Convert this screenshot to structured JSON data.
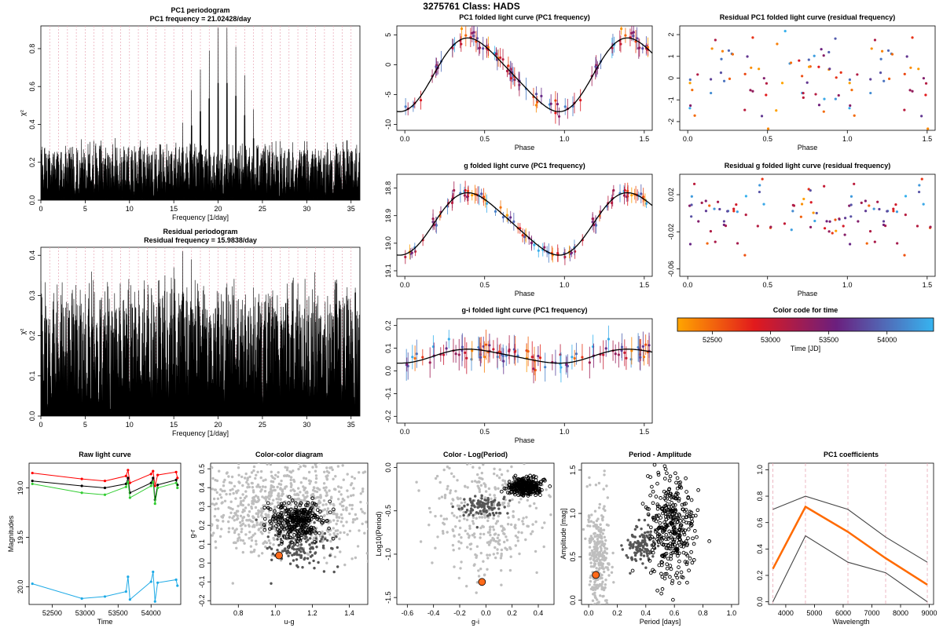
{
  "figure_title": "3275761    Class: HADS",
  "colors": {
    "early_time": "#FFA500",
    "late_time": "#36B4F0",
    "mid_time": "#6B1F7E",
    "fit_curve": "#000000",
    "reference_lines": "#E8A6B5",
    "highlight_point": "#FF6A1A",
    "background_points": "#BEBEBE"
  },
  "colorbar": {
    "title": "Color code for time",
    "xlabel": "Time [JD]",
    "ticks": [
      "52500",
      "53000",
      "53500",
      "54000"
    ],
    "range": [
      52200,
      54400
    ]
  },
  "chart_data": [
    {
      "id": "pc1-periodogram",
      "type": "line",
      "title": "PC1 periodogram",
      "subtitle": "PC1 frequency = 21.02428/day",
      "xlabel": "Frequency [1/day]",
      "ylabel": "χ²",
      "xlim": [
        0,
        36
      ],
      "ylim": [
        0,
        0.92
      ],
      "xticks": [
        "0",
        "5",
        "10",
        "15",
        "20",
        "25",
        "30",
        "35"
      ],
      "yticks": [
        "0.0",
        "0.2",
        "0.4",
        "0.6",
        "0.8"
      ],
      "reference_lines": "dashed vertical lines at 1/day intervals",
      "peaks": [
        [
          17.0,
          0.58
        ],
        [
          18.0,
          0.69
        ],
        [
          19.0,
          0.79
        ],
        [
          20.0,
          0.91
        ],
        [
          21.0,
          0.91
        ],
        [
          22.0,
          0.81
        ],
        [
          23.0,
          0.66
        ],
        [
          24.0,
          0.48
        ],
        [
          16.0,
          0.41
        ]
      ]
    },
    {
      "id": "residual-periodogram",
      "type": "line",
      "title": "Residual periodogram",
      "subtitle": "Residual frequency = 15.9838/day",
      "xlabel": "Frequency [1/day]",
      "ylabel": "χ²",
      "xlim": [
        0,
        36
      ],
      "ylim": [
        0,
        0.42
      ],
      "xticks": [
        "0",
        "5",
        "10",
        "15",
        "20",
        "25",
        "30",
        "35"
      ],
      "yticks": [
        "0.0",
        "0.1",
        "0.2",
        "0.3",
        "0.4"
      ],
      "reference_lines": "dashed vertical lines at 1/day intervals",
      "peaks": [
        [
          16.0,
          0.41
        ],
        [
          17.0,
          0.39
        ],
        [
          15.0,
          0.37
        ],
        [
          14.0,
          0.35
        ],
        [
          21.0,
          0.33
        ],
        [
          29.0,
          0.33
        ],
        [
          24.0,
          0.32
        ]
      ]
    },
    {
      "id": "pc1-folded",
      "type": "scatter",
      "title": "PC1 folded light curve (PC1 frequency)",
      "xlabel": "Phase",
      "ylabel": "",
      "xlim": [
        -0.05,
        1.55
      ],
      "ylim": [
        -11,
        6.5
      ],
      "xticks": [
        "0.0",
        "0.5",
        "1.0",
        "1.5"
      ],
      "yticks": [
        "5",
        "0",
        "-5",
        "-10"
      ],
      "y_inverted": false,
      "fit": {
        "mean": -1.7,
        "amplitude": 6.0,
        "peak_phase": 0.43,
        "sharpness": 0.25
      },
      "scatter": 0.7,
      "error_bar": 1.4
    },
    {
      "id": "g-folded",
      "type": "scatter",
      "title": "g folded light curve (PC1 frequency)",
      "xlabel": "Phase",
      "ylabel": "",
      "xlim": [
        -0.05,
        1.55
      ],
      "ylim": [
        19.12,
        18.75
      ],
      "xticks": [
        "0.0",
        "0.5",
        "1.0",
        "1.5"
      ],
      "yticks": [
        "18.8",
        "18.9",
        "19.0",
        "19.1"
      ],
      "y_inverted": true,
      "fit": {
        "mean": 18.93,
        "amplitude": -0.11,
        "peak_phase": 0.43,
        "sharpness": 0.25
      },
      "scatter": 0.012,
      "error_bar": 0.025
    },
    {
      "id": "gi-folded",
      "type": "scatter",
      "title": "g-i folded light curve (PC1 frequency)",
      "xlabel": "Phase",
      "ylabel": "",
      "xlim": [
        -0.05,
        1.55
      ],
      "ylim": [
        -0.23,
        0.23
      ],
      "xticks": [
        "0.0",
        "0.5",
        "1.0",
        "1.5"
      ],
      "yticks": [
        "0.2",
        "0.1",
        "0.0",
        "-0.1",
        "-0.2"
      ],
      "y_inverted": false,
      "fit": {
        "mean": 0.065,
        "amplitude": 0.03,
        "peak_phase": 0.43,
        "sharpness": 0.25
      },
      "scatter": 0.02,
      "error_bar": 0.05
    },
    {
      "id": "residual-pc1-folded",
      "type": "scatter",
      "title": "Residual PC1 folded light curve (residual frequency)",
      "xlabel": "Phase",
      "ylabel": "",
      "xlim": [
        -0.05,
        1.55
      ],
      "ylim": [
        -2.4,
        2.4
      ],
      "xticks": [
        "0.0",
        "0.5",
        "1.0",
        "1.5"
      ],
      "yticks": [
        "2",
        "1",
        "0",
        "-1",
        "-2"
      ],
      "y_inverted": false,
      "fit": {
        "mean": 0,
        "amplitude": 0,
        "peak_phase": 0.6,
        "sharpness": 0.4
      },
      "scatter": 1.1
    },
    {
      "id": "residual-g-folded",
      "type": "scatter",
      "title": "Residual g folded light curve (residual frequency)",
      "xlabel": "Phase",
      "ylabel": "",
      "xlim": [
        -0.05,
        1.55
      ],
      "ylim": [
        -0.068,
        0.042
      ],
      "xticks": [
        "0.0",
        "0.5",
        "1.0",
        "1.5"
      ],
      "yticks": [
        "0.02",
        "-0.02",
        "-0.06"
      ],
      "y_inverted": false,
      "fit": {
        "mean": 0,
        "amplitude": 0,
        "peak_phase": 0.6,
        "sharpness": 0.4
      },
      "scatter": 0.018
    },
    {
      "id": "raw-light-curve",
      "type": "line",
      "title": "Raw light curve",
      "xlabel": "Time",
      "ylabel": "Magnitudes",
      "xlim": [
        52150,
        54450
      ],
      "ylim": [
        20.18,
        18.75
      ],
      "xticks": [
        "52500",
        "53000",
        "53500",
        "54000"
      ],
      "yticks": [
        "19.0",
        "19.5",
        "20.0"
      ],
      "y_inverted": true,
      "times": [
        52200,
        52950,
        53300,
        53620,
        53650,
        53680,
        54000,
        54030,
        54060,
        54100,
        54380,
        54400
      ],
      "series": [
        {
          "name": "",
          "color": "#FF0000",
          "values": [
            18.85,
            18.91,
            18.93,
            18.88,
            18.82,
            18.95,
            18.86,
            18.83,
            18.98,
            18.87,
            18.84,
            18.9
          ]
        },
        {
          "name": "",
          "color": "#000000",
          "values": [
            18.93,
            18.98,
            19.0,
            18.96,
            18.9,
            19.05,
            18.95,
            18.9,
            19.12,
            18.97,
            18.92,
            18.97
          ]
        },
        {
          "name": "",
          "color": "#32CD32",
          "values": [
            18.96,
            19.05,
            19.07,
            18.99,
            18.94,
            19.1,
            18.98,
            18.94,
            19.16,
            19.0,
            18.95,
            19.0
          ]
        },
        {
          "name": "",
          "color": "#1EAAE6",
          "values": [
            19.97,
            20.12,
            20.1,
            20.05,
            19.9,
            20.13,
            19.95,
            19.85,
            20.15,
            19.96,
            19.93,
            19.99
          ]
        }
      ]
    },
    {
      "id": "color-color",
      "type": "scatter",
      "title": "Color-color diagram",
      "xlabel": "u-g",
      "ylabel": "g-r",
      "xlim": [
        0.65,
        1.5
      ],
      "ylim": [
        -0.22,
        0.53
      ],
      "xticks": [
        "0.8",
        "1.0",
        "1.2",
        "1.4"
      ],
      "yticks": [
        "0.5",
        "0.4",
        "0.3",
        "0.2",
        "0.1",
        "0.0",
        "-0.1",
        "-0.2"
      ],
      "target": [
        1.02,
        0.04
      ],
      "clusters": [
        {
          "kind": "grey",
          "center": [
            1.05,
            0.3
          ],
          "spread": [
            0.25,
            0.12
          ],
          "n": 900
        },
        {
          "kind": "dark",
          "center": [
            1.13,
            0.09
          ],
          "spread": [
            0.08,
            0.07
          ],
          "n": 150
        },
        {
          "kind": "open",
          "center": [
            1.12,
            0.22
          ],
          "spread": [
            0.07,
            0.05
          ],
          "n": 300
        }
      ]
    },
    {
      "id": "color-period",
      "type": "scatter",
      "title": "Color - Log(Period)",
      "xlabel": "g-i",
      "ylabel": "Log10(Period)",
      "xlim": [
        -0.68,
        0.52
      ],
      "ylim": [
        -1.58,
        0.05
      ],
      "xticks": [
        "-0.6",
        "-0.4",
        "-0.2",
        "0.0",
        "0.2",
        "0.4"
      ],
      "yticks": [
        "0.0",
        "-0.5",
        "-1.0",
        "-1.5"
      ],
      "target": [
        -0.03,
        -1.32
      ],
      "clusters": [
        {
          "kind": "grey",
          "center": [
            0.0,
            -0.55
          ],
          "spread": [
            0.2,
            0.35
          ],
          "n": 350
        },
        {
          "kind": "dark",
          "center": [
            -0.02,
            -0.45
          ],
          "spread": [
            0.08,
            0.05
          ],
          "n": 100
        },
        {
          "kind": "open",
          "center": [
            0.3,
            -0.22
          ],
          "spread": [
            0.06,
            0.05
          ],
          "n": 320
        }
      ]
    },
    {
      "id": "period-amplitude",
      "type": "scatter",
      "title": "Period - Amplitude",
      "xlabel": "Period [days]",
      "ylabel": "Amplitude [mag]",
      "xlim": [
        -0.05,
        1.05
      ],
      "ylim": [
        -0.05,
        1.58
      ],
      "xticks": [
        "0.0",
        "0.2",
        "0.4",
        "0.6",
        "0.8",
        "1.0"
      ],
      "yticks": [
        "0.0",
        "0.5",
        "1.0",
        "1.5"
      ],
      "target": [
        0.05,
        0.29
      ],
      "clusters": [
        {
          "kind": "grey",
          "center": [
            0.07,
            0.45
          ],
          "spread": [
            0.04,
            0.35
          ],
          "n": 300
        },
        {
          "kind": "dark",
          "center": [
            0.37,
            0.63
          ],
          "spread": [
            0.05,
            0.12
          ],
          "n": 120
        },
        {
          "kind": "open",
          "center": [
            0.58,
            0.85
          ],
          "spread": [
            0.08,
            0.3
          ],
          "n": 350
        }
      ]
    },
    {
      "id": "pc1-coefficients",
      "type": "line",
      "title": "PC1 coefficients",
      "xlabel": "Wavelength",
      "ylabel": "",
      "xlim": [
        3400,
        9150
      ],
      "ylim": [
        -0.02,
        1.05
      ],
      "xticks": [
        "4000",
        "5000",
        "6000",
        "7000",
        "8000",
        "9000"
      ],
      "yticks": [
        "0.0",
        "0.2",
        "0.4",
        "0.6",
        "0.8",
        "1.0"
      ],
      "wavelengths": [
        3551,
        4686,
        6166,
        7480,
        8932
      ],
      "series": [
        {
          "name": "",
          "color": "#FF6A00",
          "values": [
            0.25,
            0.72,
            0.53,
            0.33,
            0.13
          ]
        },
        {
          "name": "",
          "color": "#444444",
          "values": [
            0.7,
            0.8,
            0.7,
            0.49,
            0.3
          ]
        },
        {
          "name": "",
          "color": "#444444",
          "values": [
            0.0,
            0.5,
            0.3,
            0.22,
            0.0
          ]
        }
      ]
    }
  ]
}
